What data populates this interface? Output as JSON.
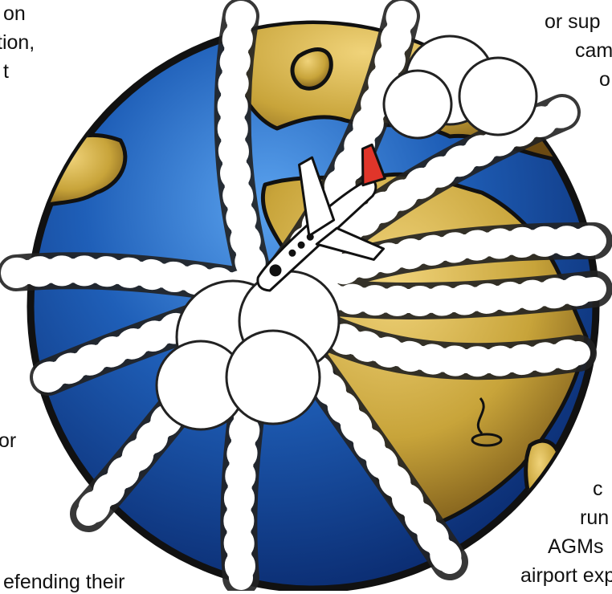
{
  "text_fragments": {
    "top_left": [
      "on",
      "tion,",
      "t"
    ],
    "top_right": [
      "or sup",
      "cam",
      "o"
    ],
    "mid_left": [
      "or"
    ],
    "bottom_left": [
      "efending their"
    ],
    "bottom_right": [
      "c",
      "run",
      "AGMs",
      "airport exp"
    ]
  },
  "colors": {
    "ocean": "#1f5fb8",
    "ocean_dark": "#0a2a6e",
    "land": "#c8a43a",
    "land_dark": "#6b4a12",
    "outline": "#111111",
    "smoke": "#ffffff",
    "plane_red": "#e0352a",
    "plane_white": "#ffffff"
  },
  "illustration": {
    "subject": "cartoon globe wrapped in airplane contrail smoke with a red and white airliner",
    "icons": [
      "globe-icon",
      "airplane-icon",
      "contrail-icon",
      "steam-icon"
    ]
  }
}
